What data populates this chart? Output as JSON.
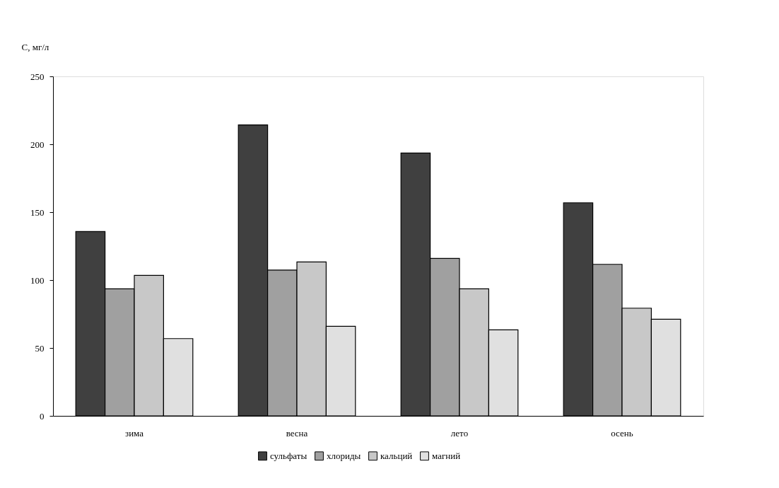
{
  "chart_data": {
    "type": "bar",
    "ylabel": "С, мг/л",
    "categories": [
      "зима",
      "весна",
      "лето",
      "осень"
    ],
    "series": [
      {
        "name": "сульфаты",
        "color": "#404040",
        "values": [
          135.7,
          214.3,
          193.6,
          156.9
        ]
      },
      {
        "name": "хлориды",
        "color": "#a0a0a0",
        "values": [
          93.6,
          107.4,
          116.0,
          111.6
        ]
      },
      {
        "name": "кальций",
        "color": "#c8c8c8",
        "values": [
          103.4,
          113.3,
          93.6,
          79.3
        ]
      },
      {
        "name": "магний",
        "color": "#e0e0e0",
        "values": [
          56.9,
          66.0,
          63.3,
          71.2
        ]
      }
    ],
    "ylim": [
      0,
      250
    ],
    "yticks": [
      0,
      50,
      100,
      150,
      200,
      250
    ],
    "grid": false,
    "legend": "bottom"
  }
}
